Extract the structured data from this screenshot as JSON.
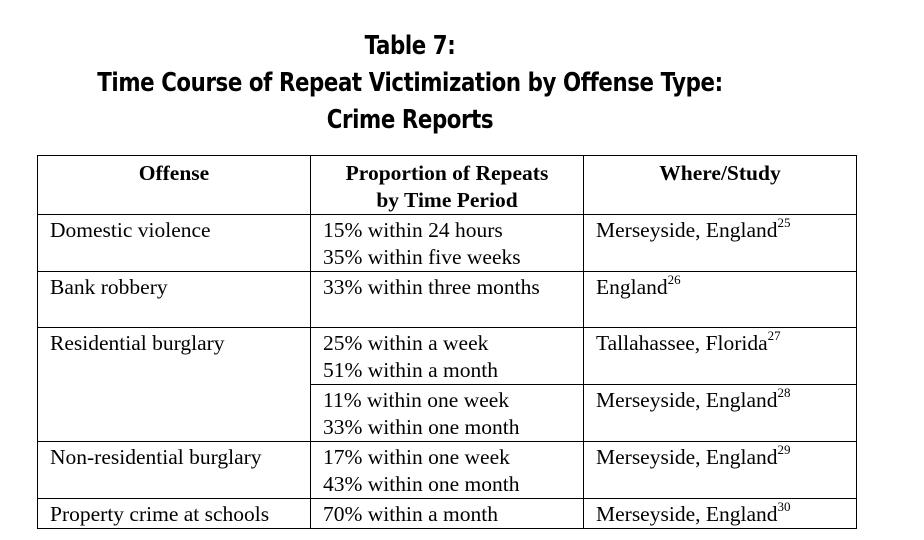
{
  "title": {
    "line1": "Table 7:",
    "line2": "Time Course of Repeat Victimization by Offense Type:",
    "line3": "Crime Reports"
  },
  "table": {
    "headers": {
      "offense": "Offense",
      "proportion_line1": "Proportion of Repeats",
      "proportion_line2": "by Time Period",
      "where": "Where/Study"
    },
    "rows": [
      {
        "offense": "Domestic violence",
        "period1": "15% within 24 hours",
        "period2": "35% within five weeks",
        "where": "Merseyside, England",
        "note": "25"
      },
      {
        "offense": "Bank robbery",
        "period1": "33% within three months",
        "period2": "",
        "where": "England",
        "note": "26"
      },
      {
        "offense": "Residential burglary",
        "period1": "25% within a week",
        "period2": "51% within a month",
        "where": "Tallahassee, Florida",
        "note": "27"
      },
      {
        "offense": "",
        "period1": "11% within one week",
        "period2": "33% within one month",
        "where": "Merseyside, England",
        "note": "28"
      },
      {
        "offense": "Non-residential burglary",
        "period1": "17% within one week",
        "period2": "43% within one month",
        "where": "Merseyside, England",
        "note": "29"
      },
      {
        "offense": "Property crime at schools",
        "period1": "70% within a month",
        "period2": "",
        "where": "Merseyside, England",
        "note": "30"
      }
    ]
  }
}
